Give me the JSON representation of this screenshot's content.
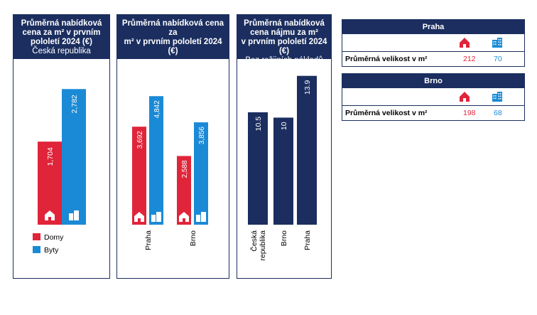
{
  "colors": {
    "navy": "#1b2e5f",
    "houses": "#e0243a",
    "flats": "#1b8ad6",
    "rent": "#1b2e5f"
  },
  "icons": {
    "houses": "house-icon",
    "flats": "apartment-building-icon"
  },
  "legend": {
    "houses": "Domy",
    "flats": "Byty"
  },
  "chart_data": [
    {
      "type": "bar",
      "title_lines": [
        "Průměrná nabídková",
        "cena za m² v prvním",
        "pololetí 2024 (€)"
      ],
      "subtitle": "Česká republika",
      "categories": [
        ""
      ],
      "series": [
        {
          "name": "Domy",
          "values": [
            1704
          ],
          "labels": [
            "1,704"
          ]
        },
        {
          "name": "Byty",
          "values": [
            2782
          ],
          "labels": [
            "2,782"
          ]
        }
      ],
      "ylim": [
        0,
        3500
      ]
    },
    {
      "type": "bar",
      "title_lines": [
        "Průměrná nabídková cena za",
        "m² v prvním pololetí 2024 (€)"
      ],
      "subtitle": "",
      "categories": [
        "Praha",
        "Brno"
      ],
      "series": [
        {
          "name": "Domy",
          "values": [
            3692,
            2588
          ],
          "labels": [
            "3,692",
            "2,588"
          ]
        },
        {
          "name": "Byty",
          "values": [
            4842,
            3856
          ],
          "labels": [
            "4,842",
            "3,856"
          ]
        }
      ],
      "ylim": [
        0,
        6000
      ]
    },
    {
      "type": "bar",
      "title_lines": [
        "Průměrná nabídková",
        "cena nájmu za m²",
        "v prvním pololetí 2024 (€)"
      ],
      "subtitle": "Bez režijních nákladů",
      "categories": [
        "Česká republika",
        "Brno",
        "Praha"
      ],
      "category_lines": [
        [
          "Česká",
          "republika"
        ],
        [
          "Brno"
        ],
        [
          "Praha"
        ]
      ],
      "series": [
        {
          "name": "",
          "values": [
            10.5,
            10,
            13.9
          ],
          "labels": [
            "10.5",
            "10",
            "13.9"
          ]
        }
      ],
      "ylim": [
        0,
        17
      ]
    }
  ],
  "tables": [
    {
      "city": "Praha",
      "row_label": "Průměrná velikost v m²",
      "houses": "212",
      "flats": "70"
    },
    {
      "city": "Brno",
      "row_label": "Průměrná velikost v m²",
      "houses": "198",
      "flats": "68"
    }
  ]
}
